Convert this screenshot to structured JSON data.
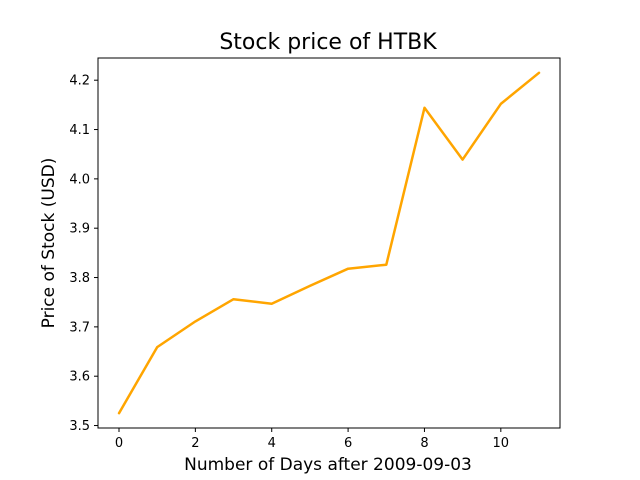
{
  "chart_data": {
    "type": "line",
    "title": "Stock price of HTBK",
    "xlabel": "Number of Days after 2009-09-03",
    "ylabel": "Price of Stock (USD)",
    "xlim": [
      -0.55,
      11.55
    ],
    "ylim": [
      3.495,
      4.245
    ],
    "xticks": [
      0,
      2,
      4,
      6,
      8,
      10
    ],
    "yticks": [
      3.5,
      3.6,
      3.7,
      3.8,
      3.9,
      4.0,
      4.1,
      4.2
    ],
    "ytick_labels": [
      "3.5",
      "3.6",
      "3.7",
      "3.8",
      "3.9",
      "4.0",
      "4.1",
      "4.2"
    ],
    "grid": false,
    "series": [
      {
        "color": "#FFA500",
        "x": [
          0,
          1,
          2,
          3,
          4,
          5,
          6,
          7,
          8,
          9,
          10,
          11
        ],
        "y": [
          3.525,
          3.659,
          3.711,
          3.756,
          3.747,
          3.783,
          3.818,
          3.826,
          4.144,
          4.039,
          4.152,
          4.215
        ]
      }
    ]
  }
}
